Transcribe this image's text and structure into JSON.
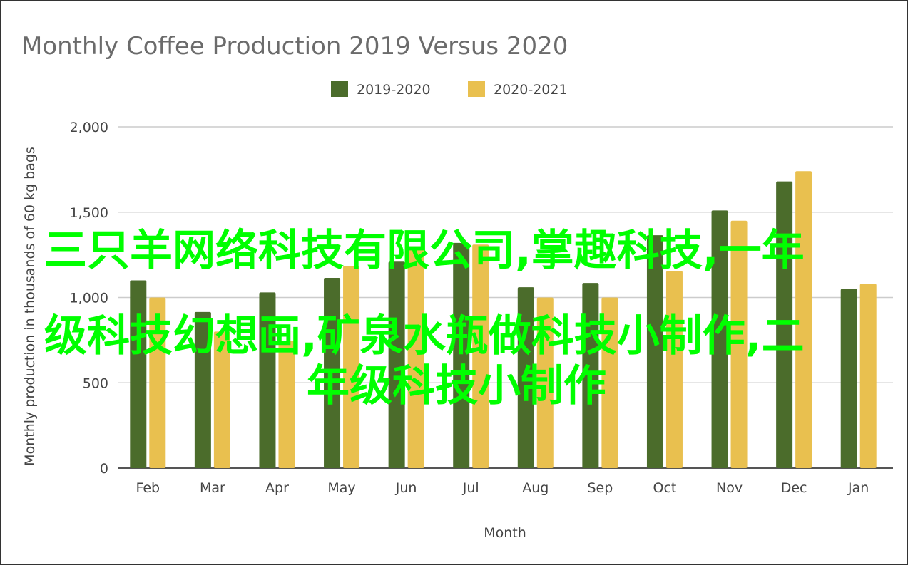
{
  "chart_data": {
    "type": "bar",
    "title": "Monthly Coffee Production 2019 Versus 2020",
    "xlabel": "Month",
    "ylabel": "Monthly production in thousands of 60 kg bags",
    "ylim": [
      0,
      2000
    ],
    "yticks": [
      0,
      500,
      1000,
      1500,
      2000
    ],
    "ytick_labels": [
      "0",
      "500",
      "1,000",
      "1,500",
      "2,000"
    ],
    "grid": true,
    "legend": "top",
    "categories": [
      "Feb",
      "Mar",
      "Apr",
      "May",
      "Jun",
      "Jul",
      "Aug",
      "Sep",
      "Oct",
      "Nov",
      "Dec",
      "Jan"
    ],
    "series": [
      {
        "name": "2019-2020",
        "color": "#4b6c2b",
        "values": [
          1100,
          915,
          1030,
          1115,
          1210,
          1320,
          1060,
          1085,
          1365,
          1510,
          1680,
          1050
        ]
      },
      {
        "name": "2020-2021",
        "color": "#e9c04f",
        "values": [
          1000,
          800,
          745,
          1185,
          1300,
          1310,
          1000,
          1000,
          1155,
          1450,
          1740,
          1080
        ]
      }
    ]
  },
  "overlay_text": [
    "三只羊网络科技有限公司,掌趣科技,一年",
    "级科技幻想画,矿泉水瓶做科技小制作,二",
    "年级科技小制作"
  ]
}
